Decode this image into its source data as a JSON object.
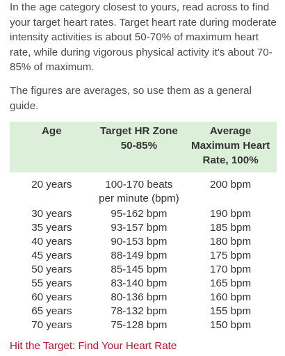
{
  "intro_paragraph": "In the age category closest to yours, read across to find your target heart rates. Target heart rate during moderate intensity activities is about 50-70% of maximum heart rate, while during vigorous physical activity it's about 70-85% of maximum.",
  "averages_note": "The figures are averages, so use them as a general guide.",
  "table": {
    "headers": {
      "age": "Age",
      "zone_line1": "Target HR Zone",
      "zone_line2": "50-85%",
      "max_line1": "Average",
      "max_line2": "Maximum Heart",
      "max_line3": "Rate, 100%"
    },
    "rows": [
      {
        "age": "20 years",
        "zone_line1": "100-170 beats",
        "zone_line2": "per minute (bpm)",
        "max": "200 bpm"
      },
      {
        "age": "30 years",
        "zone_line1": "95-162 bpm",
        "max": "190 bpm"
      },
      {
        "age": "35 years",
        "zone_line1": "93-157 bpm",
        "max": "185 bpm"
      },
      {
        "age": "40 years",
        "zone_line1": "90-153 bpm",
        "max": "180 bpm"
      },
      {
        "age": "45 years",
        "zone_line1": "88-149 bpm",
        "max": "175 bpm"
      },
      {
        "age": "50 years",
        "zone_line1": "85-145 bpm",
        "max": "170 bpm"
      },
      {
        "age": "55 years",
        "zone_line1": "83-140 bpm",
        "max": "165 bpm"
      },
      {
        "age": "60 years",
        "zone_line1": "80-136 bpm",
        "max": "160 bpm"
      },
      {
        "age": "65 years",
        "zone_line1": "78-132 bpm",
        "max": "155 bpm"
      },
      {
        "age": "70 years",
        "zone_line1": "75-128 bpm",
        "max": "150 bpm"
      }
    ]
  },
  "link_text": "Hit the Target: Find Your Heart Rate",
  "colors": {
    "header_background": "#dcefd9",
    "link": "#c8102e",
    "text": "#4a4a4a"
  }
}
